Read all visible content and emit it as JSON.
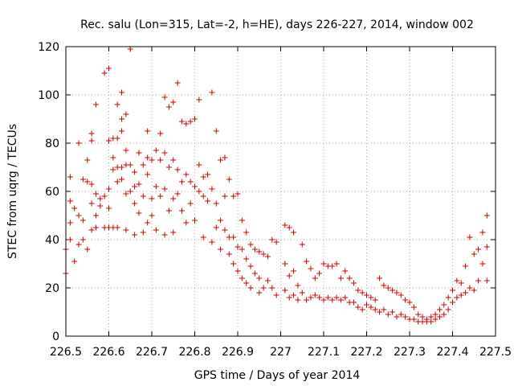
{
  "chart_data": {
    "type": "scatter",
    "title": "Rec. salu (Lon=315, Lat=-2, h=HE), days 226-227, 2014, window 002",
    "xlabel": "GPS time / Days of year 2014",
    "ylabel": "STEC from uqrg / TECUs",
    "xlim": [
      226.5,
      227.5
    ],
    "ylim": [
      0,
      120
    ],
    "xticks": [
      "226.5",
      "226.6",
      "226.7",
      "226.8",
      "226.9",
      "227",
      "227.1",
      "227.2",
      "227.3",
      "227.4",
      "227.5"
    ],
    "yticks": [
      "0",
      "20",
      "40",
      "60",
      "80",
      "100",
      "120"
    ],
    "grid": true,
    "marker": "+",
    "color": "#cc0000",
    "points": [
      [
        226.5,
        26
      ],
      [
        226.5,
        36
      ],
      [
        226.51,
        40
      ],
      [
        226.51,
        47
      ],
      [
        226.51,
        56
      ],
      [
        226.51,
        66
      ],
      [
        226.52,
        31
      ],
      [
        226.52,
        53
      ],
      [
        226.53,
        80
      ],
      [
        226.53,
        50
      ],
      [
        226.53,
        38
      ],
      [
        226.54,
        65
      ],
      [
        226.54,
        48
      ],
      [
        226.54,
        40
      ],
      [
        226.55,
        73
      ],
      [
        226.55,
        64
      ],
      [
        226.55,
        36
      ],
      [
        226.56,
        84
      ],
      [
        226.56,
        81
      ],
      [
        226.56,
        63
      ],
      [
        226.56,
        55
      ],
      [
        226.56,
        44
      ],
      [
        226.57,
        96
      ],
      [
        226.57,
        59
      ],
      [
        226.57,
        50
      ],
      [
        226.57,
        45
      ],
      [
        226.58,
        57
      ],
      [
        226.58,
        54
      ],
      [
        226.59,
        109
      ],
      [
        226.59,
        58
      ],
      [
        226.59,
        45
      ],
      [
        226.6,
        111
      ],
      [
        226.6,
        81
      ],
      [
        226.6,
        61
      ],
      [
        226.6,
        53
      ],
      [
        226.6,
        45
      ],
      [
        226.61,
        82
      ],
      [
        226.61,
        74
      ],
      [
        226.61,
        69
      ],
      [
        226.61,
        45
      ],
      [
        226.62,
        96
      ],
      [
        226.62,
        82
      ],
      [
        226.62,
        70
      ],
      [
        226.62,
        64
      ],
      [
        226.62,
        45
      ],
      [
        226.63,
        101
      ],
      [
        226.63,
        90
      ],
      [
        226.63,
        85
      ],
      [
        226.63,
        70
      ],
      [
        226.63,
        65
      ],
      [
        226.64,
        92
      ],
      [
        226.64,
        77
      ],
      [
        226.64,
        71
      ],
      [
        226.64,
        59
      ],
      [
        226.64,
        44
      ],
      [
        226.65,
        119
      ],
      [
        226.65,
        71
      ],
      [
        226.65,
        60
      ],
      [
        226.66,
        68
      ],
      [
        226.66,
        62
      ],
      [
        226.66,
        55
      ],
      [
        226.66,
        42
      ],
      [
        226.67,
        76
      ],
      [
        226.67,
        63
      ],
      [
        226.67,
        51
      ],
      [
        226.68,
        71
      ],
      [
        226.68,
        58
      ],
      [
        226.68,
        43
      ],
      [
        226.69,
        85
      ],
      [
        226.69,
        74
      ],
      [
        226.69,
        67
      ],
      [
        226.69,
        47
      ],
      [
        226.7,
        73
      ],
      [
        226.7,
        57
      ],
      [
        226.7,
        50
      ],
      [
        226.71,
        77
      ],
      [
        226.71,
        62
      ],
      [
        226.71,
        44
      ],
      [
        226.72,
        84
      ],
      [
        226.72,
        73
      ],
      [
        226.72,
        58
      ],
      [
        226.73,
        99
      ],
      [
        226.73,
        76
      ],
      [
        226.73,
        61
      ],
      [
        226.73,
        42
      ],
      [
        226.74,
        95
      ],
      [
        226.74,
        70
      ],
      [
        226.74,
        52
      ],
      [
        226.75,
        97
      ],
      [
        226.75,
        73
      ],
      [
        226.75,
        57
      ],
      [
        226.75,
        43
      ],
      [
        226.76,
        105
      ],
      [
        226.76,
        69
      ],
      [
        226.76,
        59
      ],
      [
        226.77,
        89
      ],
      [
        226.77,
        64
      ],
      [
        226.77,
        52
      ],
      [
        226.78,
        88
      ],
      [
        226.78,
        67
      ],
      [
        226.78,
        47
      ],
      [
        226.79,
        89
      ],
      [
        226.79,
        64
      ],
      [
        226.79,
        55
      ],
      [
        226.8,
        90
      ],
      [
        226.8,
        62
      ],
      [
        226.8,
        48
      ],
      [
        226.81,
        98
      ],
      [
        226.81,
        71
      ],
      [
        226.81,
        60
      ],
      [
        226.82,
        66
      ],
      [
        226.82,
        58
      ],
      [
        226.82,
        41
      ],
      [
        226.83,
        67
      ],
      [
        226.83,
        56
      ],
      [
        226.84,
        101
      ],
      [
        226.84,
        61
      ],
      [
        226.84,
        39
      ],
      [
        226.85,
        85
      ],
      [
        226.85,
        55
      ],
      [
        226.85,
        45
      ],
      [
        226.86,
        73
      ],
      [
        226.86,
        48
      ],
      [
        226.86,
        36
      ],
      [
        226.87,
        74
      ],
      [
        226.87,
        58
      ],
      [
        226.87,
        44
      ],
      [
        226.88,
        65
      ],
      [
        226.88,
        41
      ],
      [
        226.88,
        34
      ],
      [
        226.89,
        58
      ],
      [
        226.89,
        41
      ],
      [
        226.89,
        30
      ],
      [
        226.9,
        59
      ],
      [
        226.9,
        37
      ],
      [
        226.9,
        27
      ],
      [
        226.91,
        48
      ],
      [
        226.91,
        36
      ],
      [
        226.91,
        24
      ],
      [
        226.92,
        43
      ],
      [
        226.92,
        32
      ],
      [
        226.92,
        22
      ],
      [
        226.93,
        38
      ],
      [
        226.93,
        29
      ],
      [
        226.93,
        20
      ],
      [
        226.94,
        36
      ],
      [
        226.94,
        26
      ],
      [
        226.95,
        35
      ],
      [
        226.95,
        24
      ],
      [
        226.95,
        18
      ],
      [
        226.96,
        34
      ],
      [
        226.96,
        20
      ],
      [
        226.97,
        33
      ],
      [
        226.97,
        23
      ],
      [
        226.98,
        40
      ],
      [
        226.98,
        20
      ],
      [
        226.99,
        39
      ],
      [
        226.99,
        17
      ],
      [
        227.01,
        46
      ],
      [
        227.01,
        30
      ],
      [
        227.01,
        19
      ],
      [
        227.02,
        45
      ],
      [
        227.02,
        25
      ],
      [
        227.02,
        16
      ],
      [
        227.03,
        43
      ],
      [
        227.03,
        27
      ],
      [
        227.03,
        17
      ],
      [
        227.04,
        21
      ],
      [
        227.04,
        15
      ],
      [
        227.05,
        38
      ],
      [
        227.05,
        18
      ],
      [
        227.06,
        31
      ],
      [
        227.06,
        15
      ],
      [
        227.07,
        28
      ],
      [
        227.07,
        16
      ],
      [
        227.08,
        24
      ],
      [
        227.08,
        17
      ],
      [
        227.09,
        26
      ],
      [
        227.09,
        16
      ],
      [
        227.1,
        30
      ],
      [
        227.1,
        15
      ],
      [
        227.11,
        29
      ],
      [
        227.11,
        16
      ],
      [
        227.12,
        29
      ],
      [
        227.12,
        15
      ],
      [
        227.13,
        30
      ],
      [
        227.13,
        16
      ],
      [
        227.14,
        24
      ],
      [
        227.14,
        15
      ],
      [
        227.15,
        27
      ],
      [
        227.15,
        16
      ],
      [
        227.16,
        24
      ],
      [
        227.16,
        14
      ],
      [
        227.17,
        22
      ],
      [
        227.17,
        14
      ],
      [
        227.18,
        19
      ],
      [
        227.18,
        12
      ],
      [
        227.19,
        18
      ],
      [
        227.19,
        11
      ],
      [
        227.2,
        17
      ],
      [
        227.2,
        13
      ],
      [
        227.21,
        16
      ],
      [
        227.21,
        12
      ],
      [
        227.22,
        15
      ],
      [
        227.22,
        11
      ],
      [
        227.23,
        24
      ],
      [
        227.23,
        10
      ],
      [
        227.24,
        21
      ],
      [
        227.24,
        11
      ],
      [
        227.25,
        20
      ],
      [
        227.25,
        9
      ],
      [
        227.26,
        19
      ],
      [
        227.26,
        10
      ],
      [
        227.27,
        18
      ],
      [
        227.27,
        8
      ],
      [
        227.28,
        17
      ],
      [
        227.28,
        9
      ],
      [
        227.29,
        15
      ],
      [
        227.29,
        8
      ],
      [
        227.3,
        14
      ],
      [
        227.3,
        7
      ],
      [
        227.31,
        12
      ],
      [
        227.31,
        7
      ],
      [
        227.32,
        9
      ],
      [
        227.32,
        6
      ],
      [
        227.33,
        8
      ],
      [
        227.33,
        6
      ],
      [
        227.34,
        7
      ],
      [
        227.34,
        6
      ],
      [
        227.35,
        8
      ],
      [
        227.35,
        6
      ],
      [
        227.36,
        9
      ],
      [
        227.36,
        7
      ],
      [
        227.37,
        11
      ],
      [
        227.37,
        8
      ],
      [
        227.38,
        13
      ],
      [
        227.38,
        9
      ],
      [
        227.39,
        16
      ],
      [
        227.39,
        11
      ],
      [
        227.4,
        19
      ],
      [
        227.4,
        14
      ],
      [
        227.41,
        23
      ],
      [
        227.41,
        16
      ],
      [
        227.42,
        22
      ],
      [
        227.42,
        17
      ],
      [
        227.43,
        29
      ],
      [
        227.43,
        18
      ],
      [
        227.44,
        41
      ],
      [
        227.44,
        20
      ],
      [
        227.45,
        34
      ],
      [
        227.45,
        19
      ],
      [
        227.46,
        36
      ],
      [
        227.46,
        23
      ],
      [
        227.47,
        43
      ],
      [
        227.47,
        30
      ],
      [
        227.48,
        50
      ],
      [
        227.48,
        37
      ],
      [
        227.48,
        23
      ]
    ]
  }
}
